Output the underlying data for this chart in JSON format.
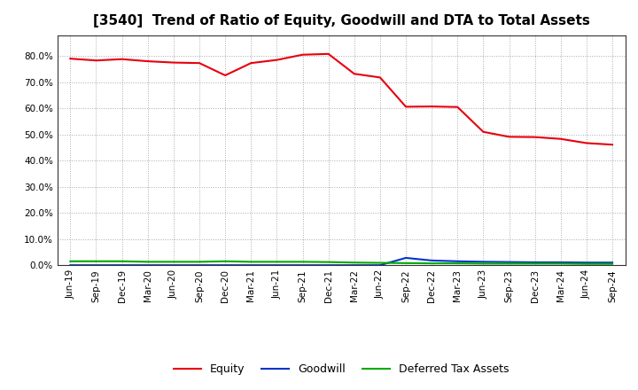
{
  "title": "[3540]  Trend of Ratio of Equity, Goodwill and DTA to Total Assets",
  "x_labels": [
    "Jun-19",
    "Sep-19",
    "Dec-19",
    "Mar-20",
    "Jun-20",
    "Sep-20",
    "Dec-20",
    "Mar-21",
    "Jun-21",
    "Sep-21",
    "Dec-21",
    "Mar-22",
    "Jun-22",
    "Sep-22",
    "Dec-22",
    "Mar-23",
    "Jun-23",
    "Sep-23",
    "Dec-23",
    "Mar-24",
    "Jun-24",
    "Sep-24"
  ],
  "equity": [
    0.79,
    0.783,
    0.788,
    0.78,
    0.775,
    0.773,
    0.726,
    0.773,
    0.785,
    0.805,
    0.808,
    0.732,
    0.718,
    0.606,
    0.607,
    0.605,
    0.51,
    0.491,
    0.49,
    0.483,
    0.467,
    0.461
  ],
  "goodwill": [
    0.0,
    0.0,
    0.0,
    0.0,
    0.0,
    0.0,
    0.0,
    0.0,
    0.0,
    0.0,
    0.0,
    0.0,
    0.0,
    0.028,
    0.018,
    0.015,
    0.013,
    0.012,
    0.011,
    0.011,
    0.01,
    0.01
  ],
  "dta": [
    0.015,
    0.015,
    0.015,
    0.013,
    0.013,
    0.013,
    0.015,
    0.013,
    0.013,
    0.013,
    0.012,
    0.01,
    0.009,
    0.008,
    0.007,
    0.007,
    0.006,
    0.006,
    0.006,
    0.006,
    0.005,
    0.005
  ],
  "equity_color": "#e8000d",
  "goodwill_color": "#0033cc",
  "dta_color": "#00aa00",
  "background_color": "#ffffff",
  "grid_color": "#aaaaaa",
  "ylim": [
    0.0,
    0.88
  ],
  "yticks": [
    0.0,
    0.1,
    0.2,
    0.3,
    0.4,
    0.5,
    0.6,
    0.7,
    0.8
  ],
  "title_fontsize": 11,
  "tick_fontsize": 7.5,
  "legend_labels": [
    "Equity",
    "Goodwill",
    "Deferred Tax Assets"
  ]
}
